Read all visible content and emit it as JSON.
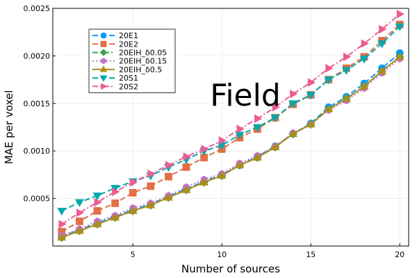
{
  "chart_data": {
    "type": "line",
    "title": "Field",
    "xlabel": "Number of sources",
    "ylabel": "MAE per voxel",
    "xlim": [
      0.5,
      20.5
    ],
    "ylim": [
      0.0,
      0.0025
    ],
    "xticks": [
      5,
      10,
      15,
      20
    ],
    "xtick_labels": [
      "5",
      "10",
      "15",
      "20"
    ],
    "yticks": [
      0.0005,
      0.001,
      0.0015,
      0.002,
      0.0025
    ],
    "ytick_labels": [
      "0.0005",
      "0.0010",
      "0.0015",
      "0.0020",
      "0.0025"
    ],
    "grid": true,
    "legend_position": "top-left",
    "x": [
      1,
      2,
      3,
      4,
      5,
      6,
      7,
      8,
      9,
      10,
      11,
      12,
      13,
      14,
      15,
      16,
      17,
      18,
      19,
      20
    ],
    "series": [
      {
        "name": "20E1",
        "color": "#009af9",
        "marker": "circle",
        "dash": "dashed",
        "values": [
          0.0001,
          0.00017,
          0.00024,
          0.00031,
          0.00038,
          0.00044,
          0.00052,
          0.0006,
          0.00068,
          0.00075,
          0.00085,
          0.00094,
          0.00105,
          0.00118,
          0.00129,
          0.00146,
          0.00157,
          0.00171,
          0.00187,
          0.00203
        ]
      },
      {
        "name": "20E2",
        "color": "#e26f46",
        "marker": "square",
        "dash": "dashed",
        "values": [
          0.00015,
          0.00026,
          0.00037,
          0.00045,
          0.00056,
          0.00063,
          0.00073,
          0.00083,
          0.00093,
          0.00102,
          0.00114,
          0.00123,
          0.00135,
          0.00149,
          0.00159,
          0.00175,
          0.00187,
          0.00199,
          0.00216,
          0.00233
        ]
      },
      {
        "name": "20EIH_δ0.05",
        "color": "#3da44d",
        "marker": "diamond",
        "dash": "dashdot",
        "values": [
          9e-05,
          0.00016,
          0.00023,
          0.0003,
          0.00037,
          0.00043,
          0.00051,
          0.00059,
          0.00067,
          0.00074,
          0.00085,
          0.00093,
          0.00104,
          0.00118,
          0.00128,
          0.00144,
          0.00155,
          0.00168,
          0.00184,
          0.00199
        ]
      },
      {
        "name": "20EIH_δ0.15",
        "color": "#c271d2",
        "marker": "hexagon",
        "dash": "dotted",
        "values": [
          0.00011,
          0.00018,
          0.00026,
          0.00032,
          0.0004,
          0.00045,
          0.00053,
          0.00062,
          0.0007,
          0.00076,
          0.00087,
          0.00095,
          0.00105,
          0.00119,
          0.00128,
          0.00143,
          0.00153,
          0.00166,
          0.00182,
          0.00197
        ]
      },
      {
        "name": "20EIH_δ0.5",
        "color": "#ac8e18",
        "marker": "triangle-up",
        "dash": "solid",
        "values": [
          9e-05,
          0.00016,
          0.00023,
          0.0003,
          0.00037,
          0.00043,
          0.00051,
          0.00059,
          0.00067,
          0.00074,
          0.00085,
          0.00093,
          0.00104,
          0.00118,
          0.00128,
          0.00144,
          0.00155,
          0.00168,
          0.00184,
          0.00199
        ]
      },
      {
        "name": "20S1",
        "color": "#00a9ad",
        "marker": "triangle-down",
        "dash": "dashed",
        "values": [
          0.00037,
          0.00046,
          0.00053,
          0.00061,
          0.00068,
          0.00074,
          0.00083,
          0.00091,
          0.001,
          0.00106,
          0.00117,
          0.00125,
          0.00135,
          0.0015,
          0.00159,
          0.00175,
          0.00185,
          0.00197,
          0.00213,
          0.00231
        ]
      },
      {
        "name": "20S2",
        "color": "#ed5d92",
        "marker": "triangle-right",
        "dash": "dashdot",
        "values": [
          0.00023,
          0.00035,
          0.00046,
          0.00057,
          0.00067,
          0.00076,
          0.00085,
          0.00094,
          0.00102,
          0.00111,
          0.00123,
          0.00134,
          0.00146,
          0.0016,
          0.00172,
          0.00187,
          0.00199,
          0.00213,
          0.00228,
          0.00244
        ]
      }
    ]
  }
}
